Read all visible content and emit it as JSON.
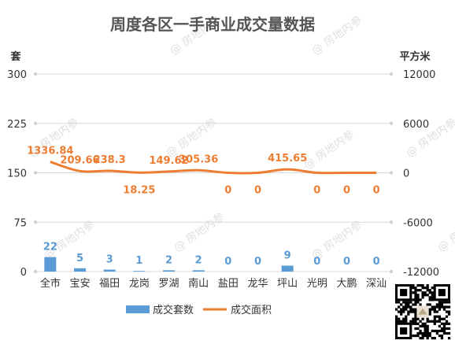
{
  "watermark": "@ 房地内参",
  "chart_data": {
    "type": "bar",
    "title": "周度各区一手商业成交量数据",
    "y_left_unit": "套",
    "y_right_unit": "平方米",
    "categories": [
      "全市",
      "宝安",
      "福田",
      "龙岗",
      "罗湖",
      "南山",
      "盐田",
      "龙华",
      "坪山",
      "光明",
      "大鹏",
      "深汕"
    ],
    "ylim_left": [
      0,
      300
    ],
    "ylim_right": [
      -12000,
      12000
    ],
    "yticks_left": [
      "0",
      "75",
      "150",
      "225",
      "300"
    ],
    "yticks_right": [
      "-12000",
      "-6000",
      "0",
      "6000",
      "12000"
    ],
    "series": [
      {
        "name": "成交套数",
        "type": "bar",
        "axis": "left",
        "color": "#5b9bd5",
        "values": [
          22,
          5,
          3,
          1,
          2,
          2,
          0,
          0,
          9,
          0,
          0,
          0
        ],
        "labels": [
          "22",
          "5",
          "3",
          "1",
          "2",
          "2",
          "0",
          "0",
          "9",
          "0",
          "0",
          "0"
        ]
      },
      {
        "name": "成交面积",
        "type": "line",
        "axis": "right",
        "color": "#ed7d31",
        "values": [
          1336.84,
          209.66,
          238.3,
          18.25,
          149.62,
          305.36,
          0,
          0,
          415.65,
          0,
          0,
          0
        ],
        "labels": [
          "1336.84",
          "209.66",
          "238.3",
          "18.25",
          "149.62",
          "305.36",
          "0",
          "0",
          "415.65",
          "0",
          "0",
          "0"
        ]
      }
    ],
    "legend_position": "bottom",
    "grid": true
  }
}
